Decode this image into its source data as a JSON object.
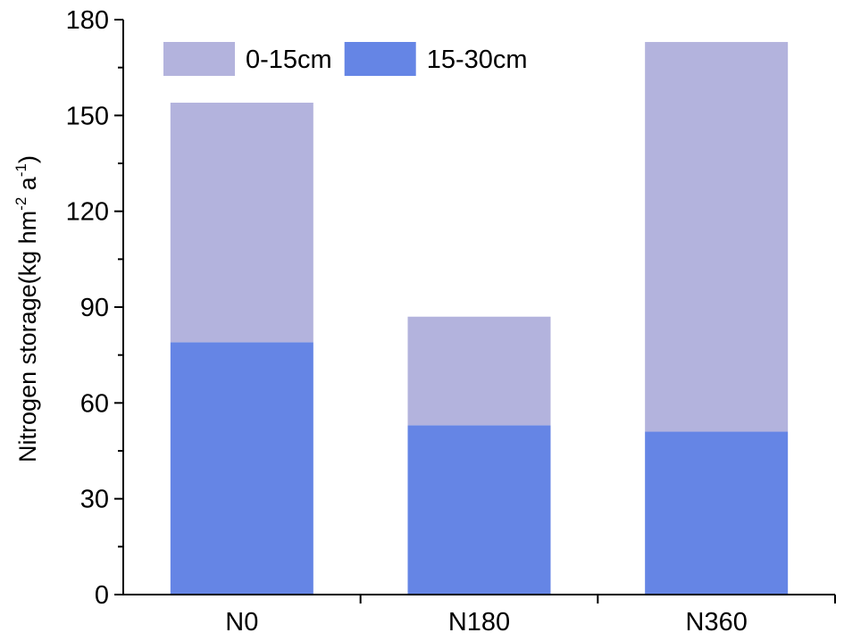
{
  "chart_data": {
    "type": "bar",
    "stacked": true,
    "title": "",
    "xlabel": "",
    "ylabel": {
      "main": "Nitrogen storage(kg hm",
      "exp1": "-2",
      "mid": " a",
      "exp2": "-1",
      "end": ")"
    },
    "categories": [
      "N0",
      "N180",
      "N360"
    ],
    "series": [
      {
        "name": "15-30cm",
        "values": [
          79,
          53,
          51
        ],
        "color": "#6585e5"
      },
      {
        "name": "0-15cm",
        "values": [
          75,
          34,
          122
        ],
        "color": "#b3b3dd"
      }
    ],
    "ylim": [
      0,
      180
    ],
    "yticks": [
      0,
      30,
      60,
      90,
      120,
      150,
      180
    ],
    "grid": false,
    "legend": {
      "placement": "top-left",
      "orientation": "horizontal",
      "order": [
        "0-15cm",
        "15-30cm"
      ]
    }
  }
}
